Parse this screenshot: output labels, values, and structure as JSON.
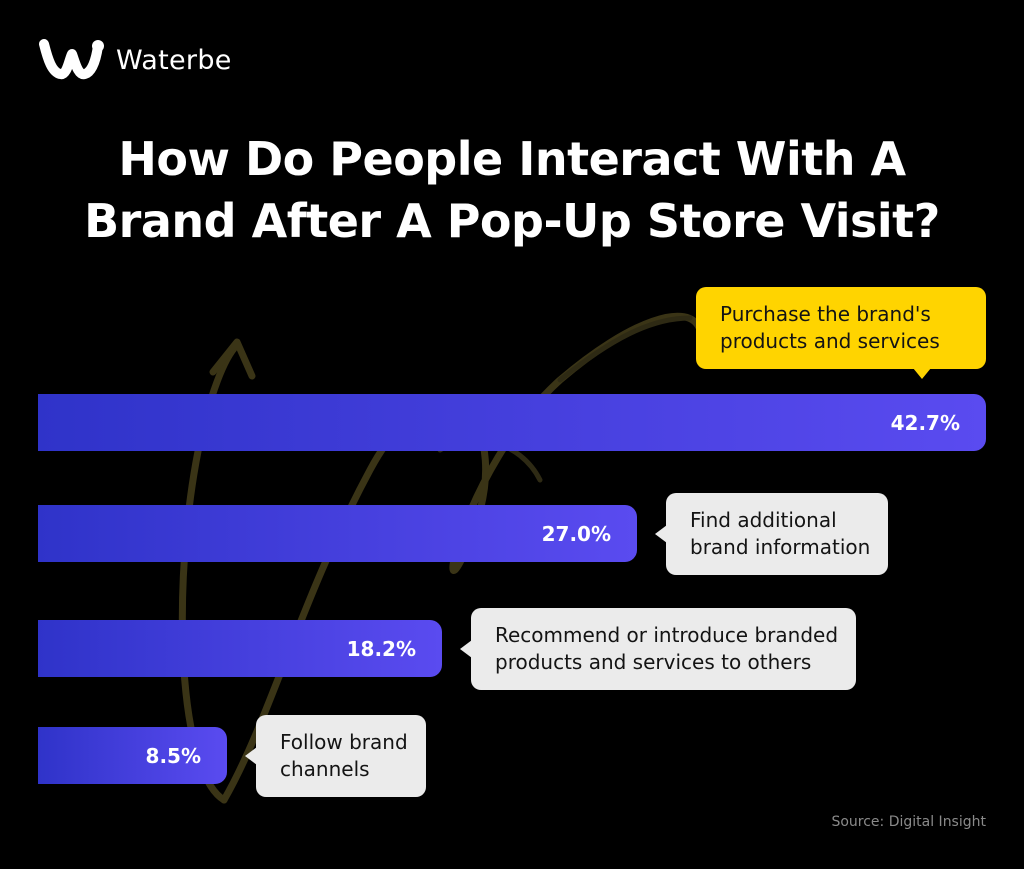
{
  "brand": {
    "name": "Waterbe",
    "logo_icon": "waterbe-w-logo-icon"
  },
  "colors": {
    "background": "#000000",
    "bar_start": "#2f33c9",
    "bar_end": "#5a4bf0",
    "highlight_callout": "#ffd400",
    "callout": "#ebebeb",
    "swirl": "#3a3416"
  },
  "source_text": "Source: Digital Insight",
  "chart_data": {
    "type": "bar",
    "orientation": "horizontal",
    "title_lines": [
      "How Do People Interact With A",
      "Brand After A Pop-Up Store Visit?"
    ],
    "unit": "%",
    "xlim": [
      0,
      42.7
    ],
    "grid": false,
    "categories": [
      "Purchase the brand's\nproducts and services",
      "Find additional\nbrand information",
      "Recommend or introduce branded\nproducts and services to others",
      "Follow brand\nchannels"
    ],
    "values": [
      42.7,
      27.0,
      18.2,
      8.5
    ],
    "value_labels": [
      "42.7%",
      "27.0%",
      "18.2%",
      "8.5%"
    ],
    "highlighted_index": 0
  }
}
